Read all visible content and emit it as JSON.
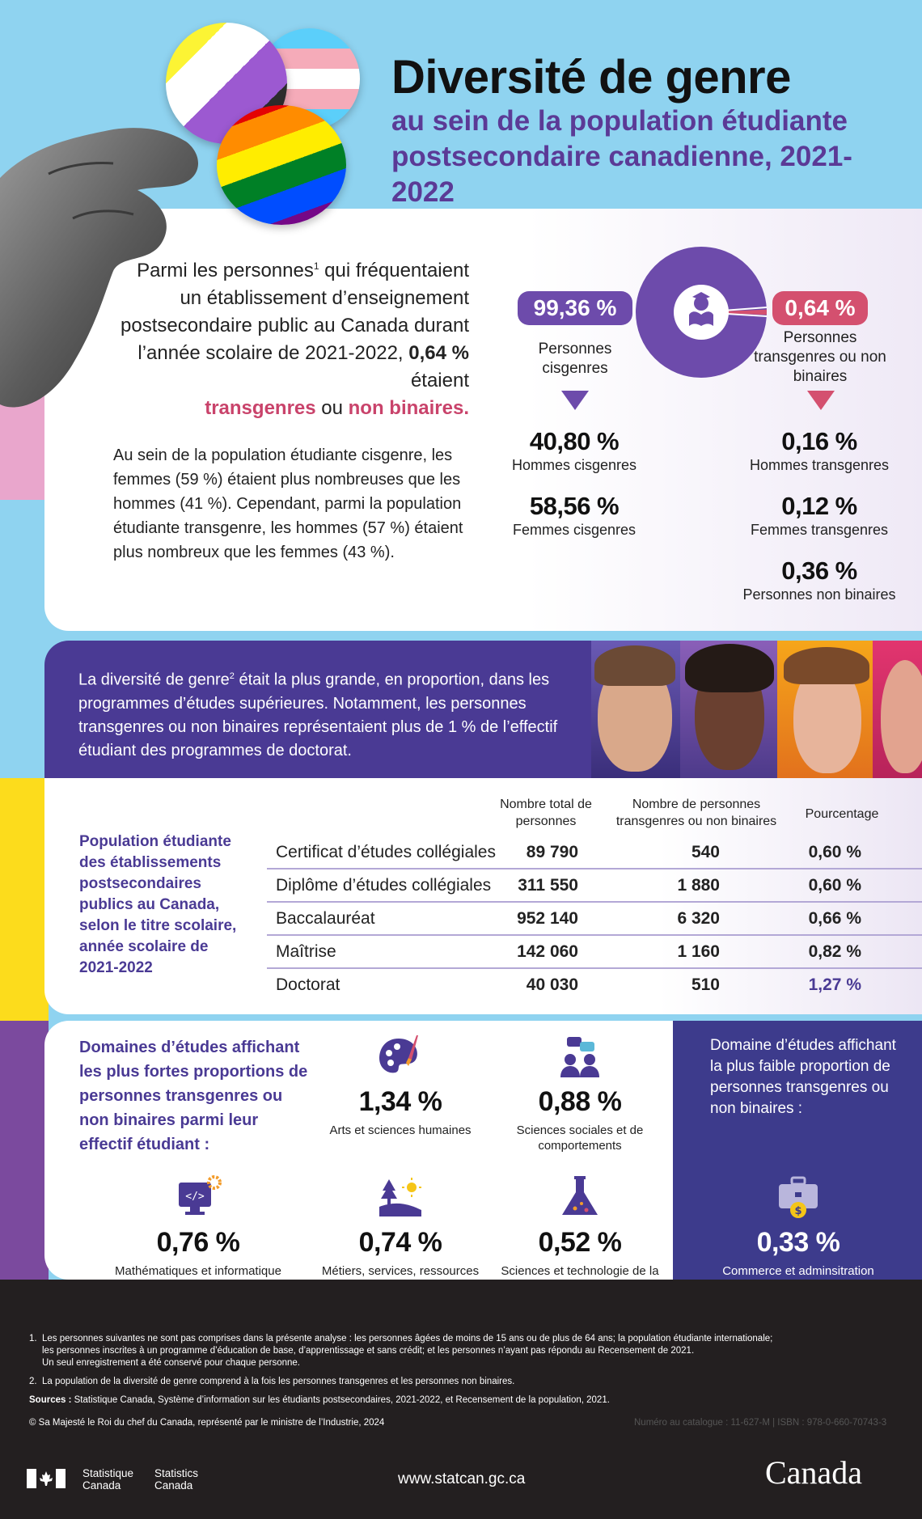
{
  "header": {
    "title": "Diversité de genre",
    "subtitle_line1": "au sein de la population étudiante",
    "subtitle_line2": "postsecondaire canadienne, 2021-2022"
  },
  "intro": {
    "text_before": "Parmi les personnes",
    "sup": "1",
    "text_mid": " qui fréquentaient un établissement d’enseignement postsecondaire public au Canada durant l’année scolaire de 2021-2022, ",
    "highlight_value": "0,64 %",
    "text_after": " étaient",
    "term_trans": "transgenres",
    "connector": " ou ",
    "term_nb": "non binaires."
  },
  "para2": "Au sein de la population étudiante cisgenre, les femmes (59 %) étaient plus nombreuses que les hommes (41 %). Cependant, parmi la population étudiante transgenre, les hommes (57 %) étaient plus nombreux que les femmes (43 %).",
  "donut": {
    "cis_pct_value": 99.36,
    "trans_pct_value": 0.64,
    "cis_label_pct": "99,36 %",
    "cis_label": "Personnes cisgenres",
    "trans_label_pct": "0,64 %",
    "trans_label": "Personnes transgenres ou non binaires",
    "colors": {
      "cis": "#6d4bab",
      "trans": "#d4506f"
    }
  },
  "cis_stats": [
    {
      "value": "40,80 %",
      "label": "Hommes cisgenres"
    },
    {
      "value": "58,56 %",
      "label": "Femmes cisgenres"
    }
  ],
  "trans_stats": [
    {
      "value": "0,16 %",
      "label": "Hommes transgenres"
    },
    {
      "value": "0,12 %",
      "label": "Femmes transgenres"
    },
    {
      "value": "0,36 %",
      "label": "Personnes non binaires"
    }
  ],
  "band": {
    "text_before": "La diversité de genre",
    "sup": "2",
    "text_after": " était la plus grande, en proportion, dans les programmes d’études supérieures. Notamment, les personnes transgenres ou non binaires représentaient plus de 1 % de l’effectif étudiant des programmes de doctorat."
  },
  "table": {
    "title": "Population étudiante des établissements postsecondaires publics au Canada, selon le titre scolaire, année scolaire de 2021-2022",
    "headers": [
      "Nombre total de personnes",
      "Nombre de personnes transgenres ou non binaires",
      "Pourcentage"
    ],
    "rows": [
      [
        "Certificat d’études collégiales",
        "89 790",
        "540",
        "0,60 %"
      ],
      [
        "Diplôme d’études collégiales",
        "311 550",
        "1 880",
        "0,60 %"
      ],
      [
        "Baccalauréat",
        "952 140",
        "6 320",
        "0,66 %"
      ],
      [
        "Maîtrise",
        "142 060",
        "1 160",
        "0,82 %"
      ],
      [
        "Doctorat",
        "40 030",
        "510",
        "1,27 %"
      ]
    ]
  },
  "fields": {
    "title": "Domaines d’études affichant les plus fortes proportions de personnes transgenres ou non binaires parmi leur effectif étudiant :",
    "items": [
      {
        "icon": "palette-icon",
        "value": "1,34 %",
        "label": "Arts et sciences humaines"
      },
      {
        "icon": "people-chat-icon",
        "value": "0,88 %",
        "label": "Sciences sociales et de comportements"
      },
      {
        "icon": "computer-code-icon",
        "value": "0,76 %",
        "label": "Mathématiques et informatique et sciences de l’information"
      },
      {
        "icon": "landscape-icon",
        "value": "0,74 %",
        "label": "Métiers, services, ressources naturelles et conservation"
      },
      {
        "icon": "flask-icon",
        "value": "0,52 %",
        "label": "Sciences et technologie de la science"
      }
    ],
    "lowest_title": "Domaine d’études affichant la plus faible proportion de personnes transgenres ou non binaires :",
    "lowest": {
      "icon": "briefcase-dollar-icon",
      "value": "0,33 %",
      "label": "Commerce et adminsitration"
    }
  },
  "footer": {
    "note1_num": "1.",
    "note1_lines": [
      "Les personnes suivantes ne sont pas comprises dans la présente analyse : les personnes âgées de moins de 15 ans ou de plus de 64 ans; la population étudiante internationale;",
      "les personnes inscrites à un programme d’éducation de base, d’apprentissage et sans crédit; et les personnes n’ayant pas répondu au Recensement de 2021.",
      "Un seul enregistrement a été conservé pour chaque personne."
    ],
    "note2_num": "2.",
    "note2": "La population de la diversité de genre comprend à la fois les personnes transgenres et les personnes non binaires.",
    "sources_label": "Sources :",
    "sources": " Statistique Canada, Système d’information sur les étudiants postsecondaires, 2021-2022, et Recensement de la population, 2021.",
    "copyright": "© Sa Majesté le Roi du chef du Canada, représenté par le ministre de l’Industrie, 2024",
    "catalogue": "Numéro au catalogue : 11-627-M | ISBN : 978-0-660-70743-3",
    "sc_fr_1": "Statistique",
    "sc_fr_2": "Canada",
    "sc_en_1": "Statistics",
    "sc_en_2": "Canada",
    "url": "www.statcan.gc.ca",
    "wordmark": "Canada"
  }
}
